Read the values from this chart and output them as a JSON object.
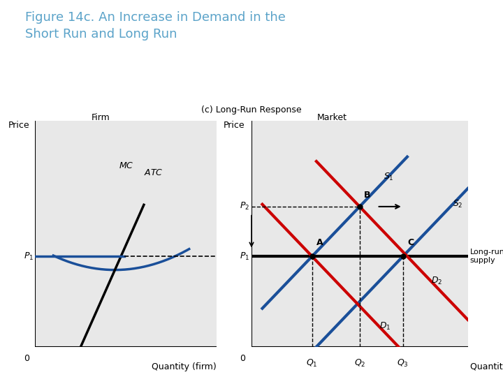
{
  "title": "Figure 14c. An Increase in Demand in the\nShort Run and Long Run",
  "title_color": "#5BA3C9",
  "subtitle": "(c) Long-Run Response",
  "firm_label": "Firm",
  "market_label": "Market",
  "bg_color": "#ffffff",
  "panel_bg": "#e8e8e8",
  "blue_color": "#1a4f99",
  "red_color": "#cc0000",
  "black_color": "#000000",
  "p1_level": 0.4,
  "p2_level": 0.62,
  "q1_level": 0.28,
  "q2_level": 0.5,
  "q3_level": 0.7
}
